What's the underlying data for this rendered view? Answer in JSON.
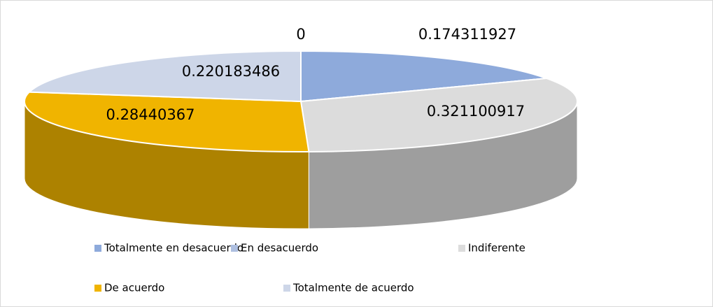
{
  "chart_data": {
    "type": "pie3d",
    "categories": [
      "Totalmente en desacuerdo",
      "En desacuerdo",
      "Indiferente",
      "De acuerdo",
      "Totalmente de acuerdo"
    ],
    "values": [
      0.174311927,
      0,
      0.321100917,
      0.28440367,
      0.220183486
    ],
    "colors": [
      "#8eaadb",
      "#aebfe0",
      "#dcdcdc",
      "#f0b400",
      "#cdd6e8"
    ],
    "legend": "bottom"
  }
}
